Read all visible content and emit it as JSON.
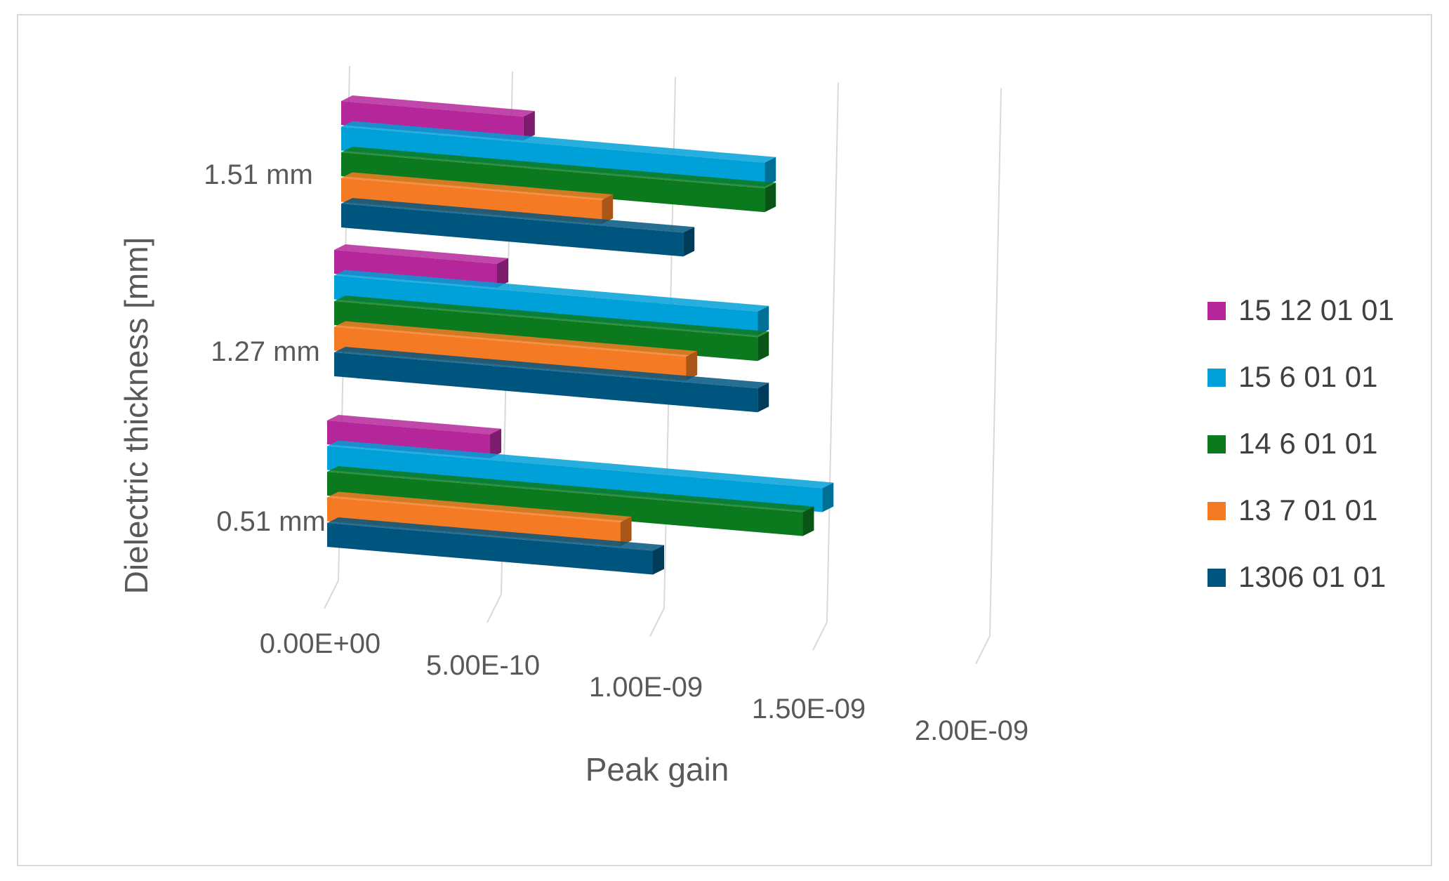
{
  "chart_data": {
    "type": "bar",
    "orientation": "horizontal",
    "style": "3d-clustered",
    "categories": [
      "0.51 mm",
      "1.27 mm",
      "1.51 mm"
    ],
    "series": [
      {
        "name": "15 12 01 01",
        "color": "#b5269a",
        "values": [
          5e-10,
          5e-10,
          5.6e-10
        ]
      },
      {
        "name": "15 6 01 01",
        "color": "#00a0d8",
        "values": [
          1.52e-09,
          1.3e-09,
          1.3e-09
        ]
      },
      {
        "name": "14 6 01 01",
        "color": "#0b7a1f",
        "values": [
          1.46e-09,
          1.3e-09,
          1.3e-09
        ]
      },
      {
        "name": "13 7 01 01",
        "color": "#f47b24",
        "values": [
          9e-10,
          1.08e-09,
          8e-10
        ]
      },
      {
        "name": "1306 01 01",
        "color": "#00557f",
        "values": [
          1e-09,
          1.3e-09,
          1.05e-09
        ]
      }
    ],
    "xlabel": "Peak gain",
    "ylabel": "Dielectric thickness [mm]",
    "xlim": [
      0,
      2e-09
    ],
    "ticks": [
      "0.00E+00",
      "5.00E-10",
      "1.00E-09",
      "1.50E-09",
      "2.00E-09"
    ],
    "grid": true,
    "legend_position": "right"
  }
}
